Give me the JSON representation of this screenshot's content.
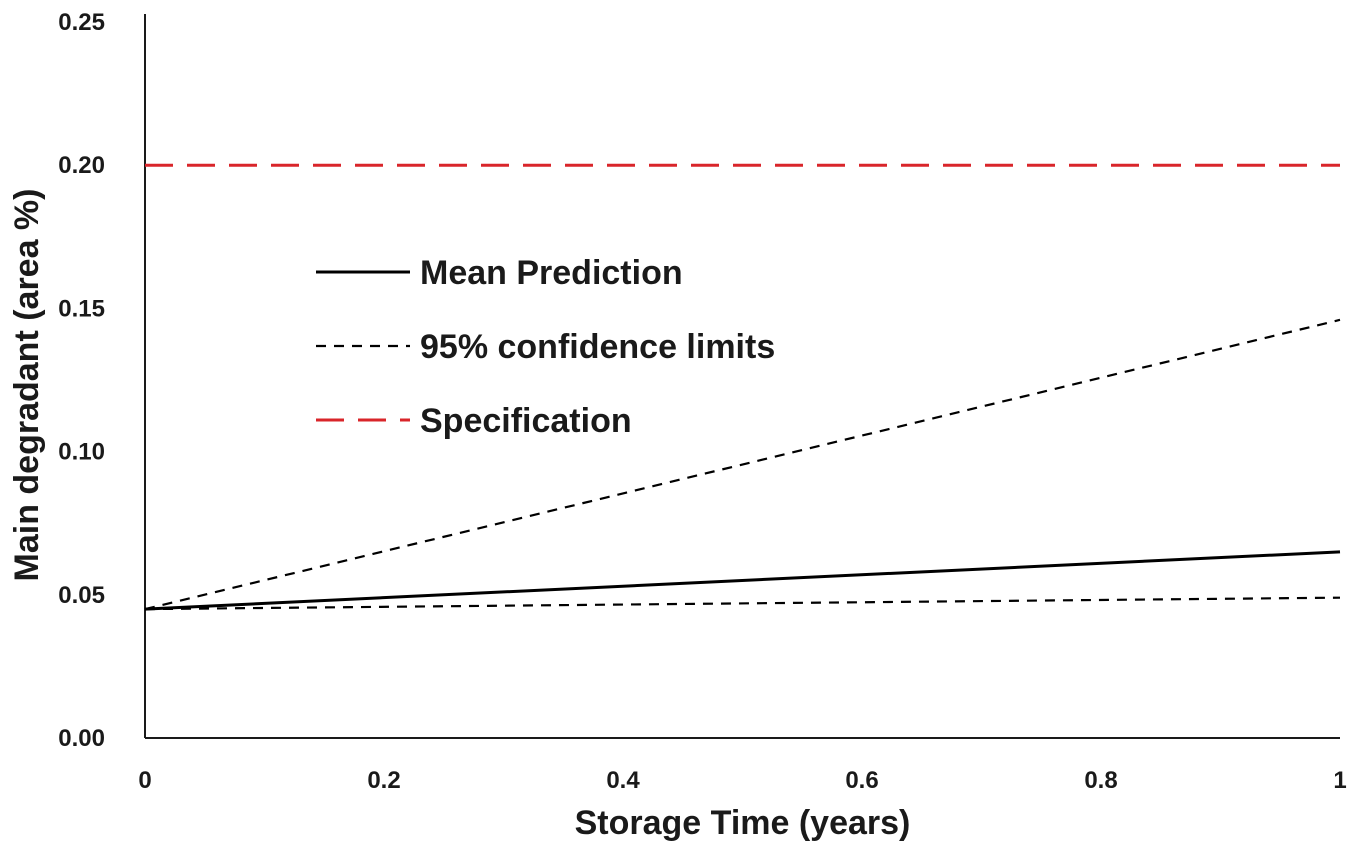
{
  "chart_data": {
    "type": "line",
    "xlabel": "Storage Time (years)",
    "ylabel": "Main degradant (area %)",
    "xlim": [
      0,
      1
    ],
    "ylim": [
      0,
      0.25
    ],
    "x_ticks": [
      "0",
      "0.2",
      "0.4",
      "0.6",
      "0.8",
      "1"
    ],
    "y_ticks": [
      "0.00",
      "0.05",
      "0.10",
      "0.15",
      "0.20",
      "0.25"
    ],
    "grid": false,
    "legend_position": "center-left",
    "series": [
      {
        "name": "Mean Prediction",
        "style": "solid",
        "color": "#000000",
        "x": [
          0,
          1
        ],
        "y": [
          0.045,
          0.065
        ]
      },
      {
        "name": "95% confidence limits",
        "style": "short-dash",
        "color": "#000000",
        "x": [
          0,
          1
        ],
        "y": [
          0.045,
          0.146
        ]
      },
      {
        "name": "",
        "style": "short-dash",
        "color": "#000000",
        "x": [
          0,
          1
        ],
        "y": [
          0.045,
          0.049
        ]
      },
      {
        "name": "Specification",
        "style": "long-dash",
        "color": "#d9252a",
        "x": [
          0,
          1
        ],
        "y": [
          0.2,
          0.2
        ]
      }
    ],
    "legend": [
      {
        "label": "Mean Prediction",
        "style": "solid",
        "color": "#000000"
      },
      {
        "label": "95% confidence limits",
        "style": "short-dash",
        "color": "#000000"
      },
      {
        "label": "Specification",
        "style": "long-dash",
        "color": "#d9252a"
      }
    ]
  }
}
